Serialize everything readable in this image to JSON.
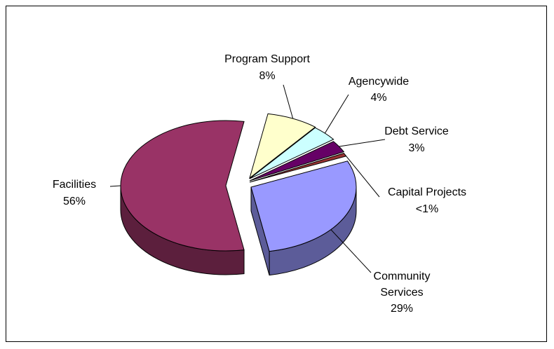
{
  "chart_data": {
    "type": "pie",
    "style": "3d-exploded",
    "legend": "none",
    "title": "",
    "slices": [
      {
        "label": "Program Support",
        "display": "8%",
        "value": 8,
        "color": "#ffffcc",
        "side": "#b3b38f"
      },
      {
        "label": "Agencywide",
        "display": "4%",
        "value": 4,
        "color": "#ccffff",
        "side": "#8fb3b3"
      },
      {
        "label": "Debt Service",
        "display": "3%",
        "value": 3,
        "color": "#660066",
        "side": "#3d003d"
      },
      {
        "label": "Capital Projects",
        "display": "<1%",
        "value": 0.8,
        "color": "#993333",
        "side": "#5c1f1f"
      },
      {
        "label": "Community Services",
        "display": "29%",
        "value": 29,
        "color": "#9999ff",
        "side": "#5c5c99"
      },
      {
        "label": "Facilities",
        "display": "56%",
        "value": 56,
        "color": "#993366",
        "side": "#5c1f3d"
      }
    ]
  }
}
